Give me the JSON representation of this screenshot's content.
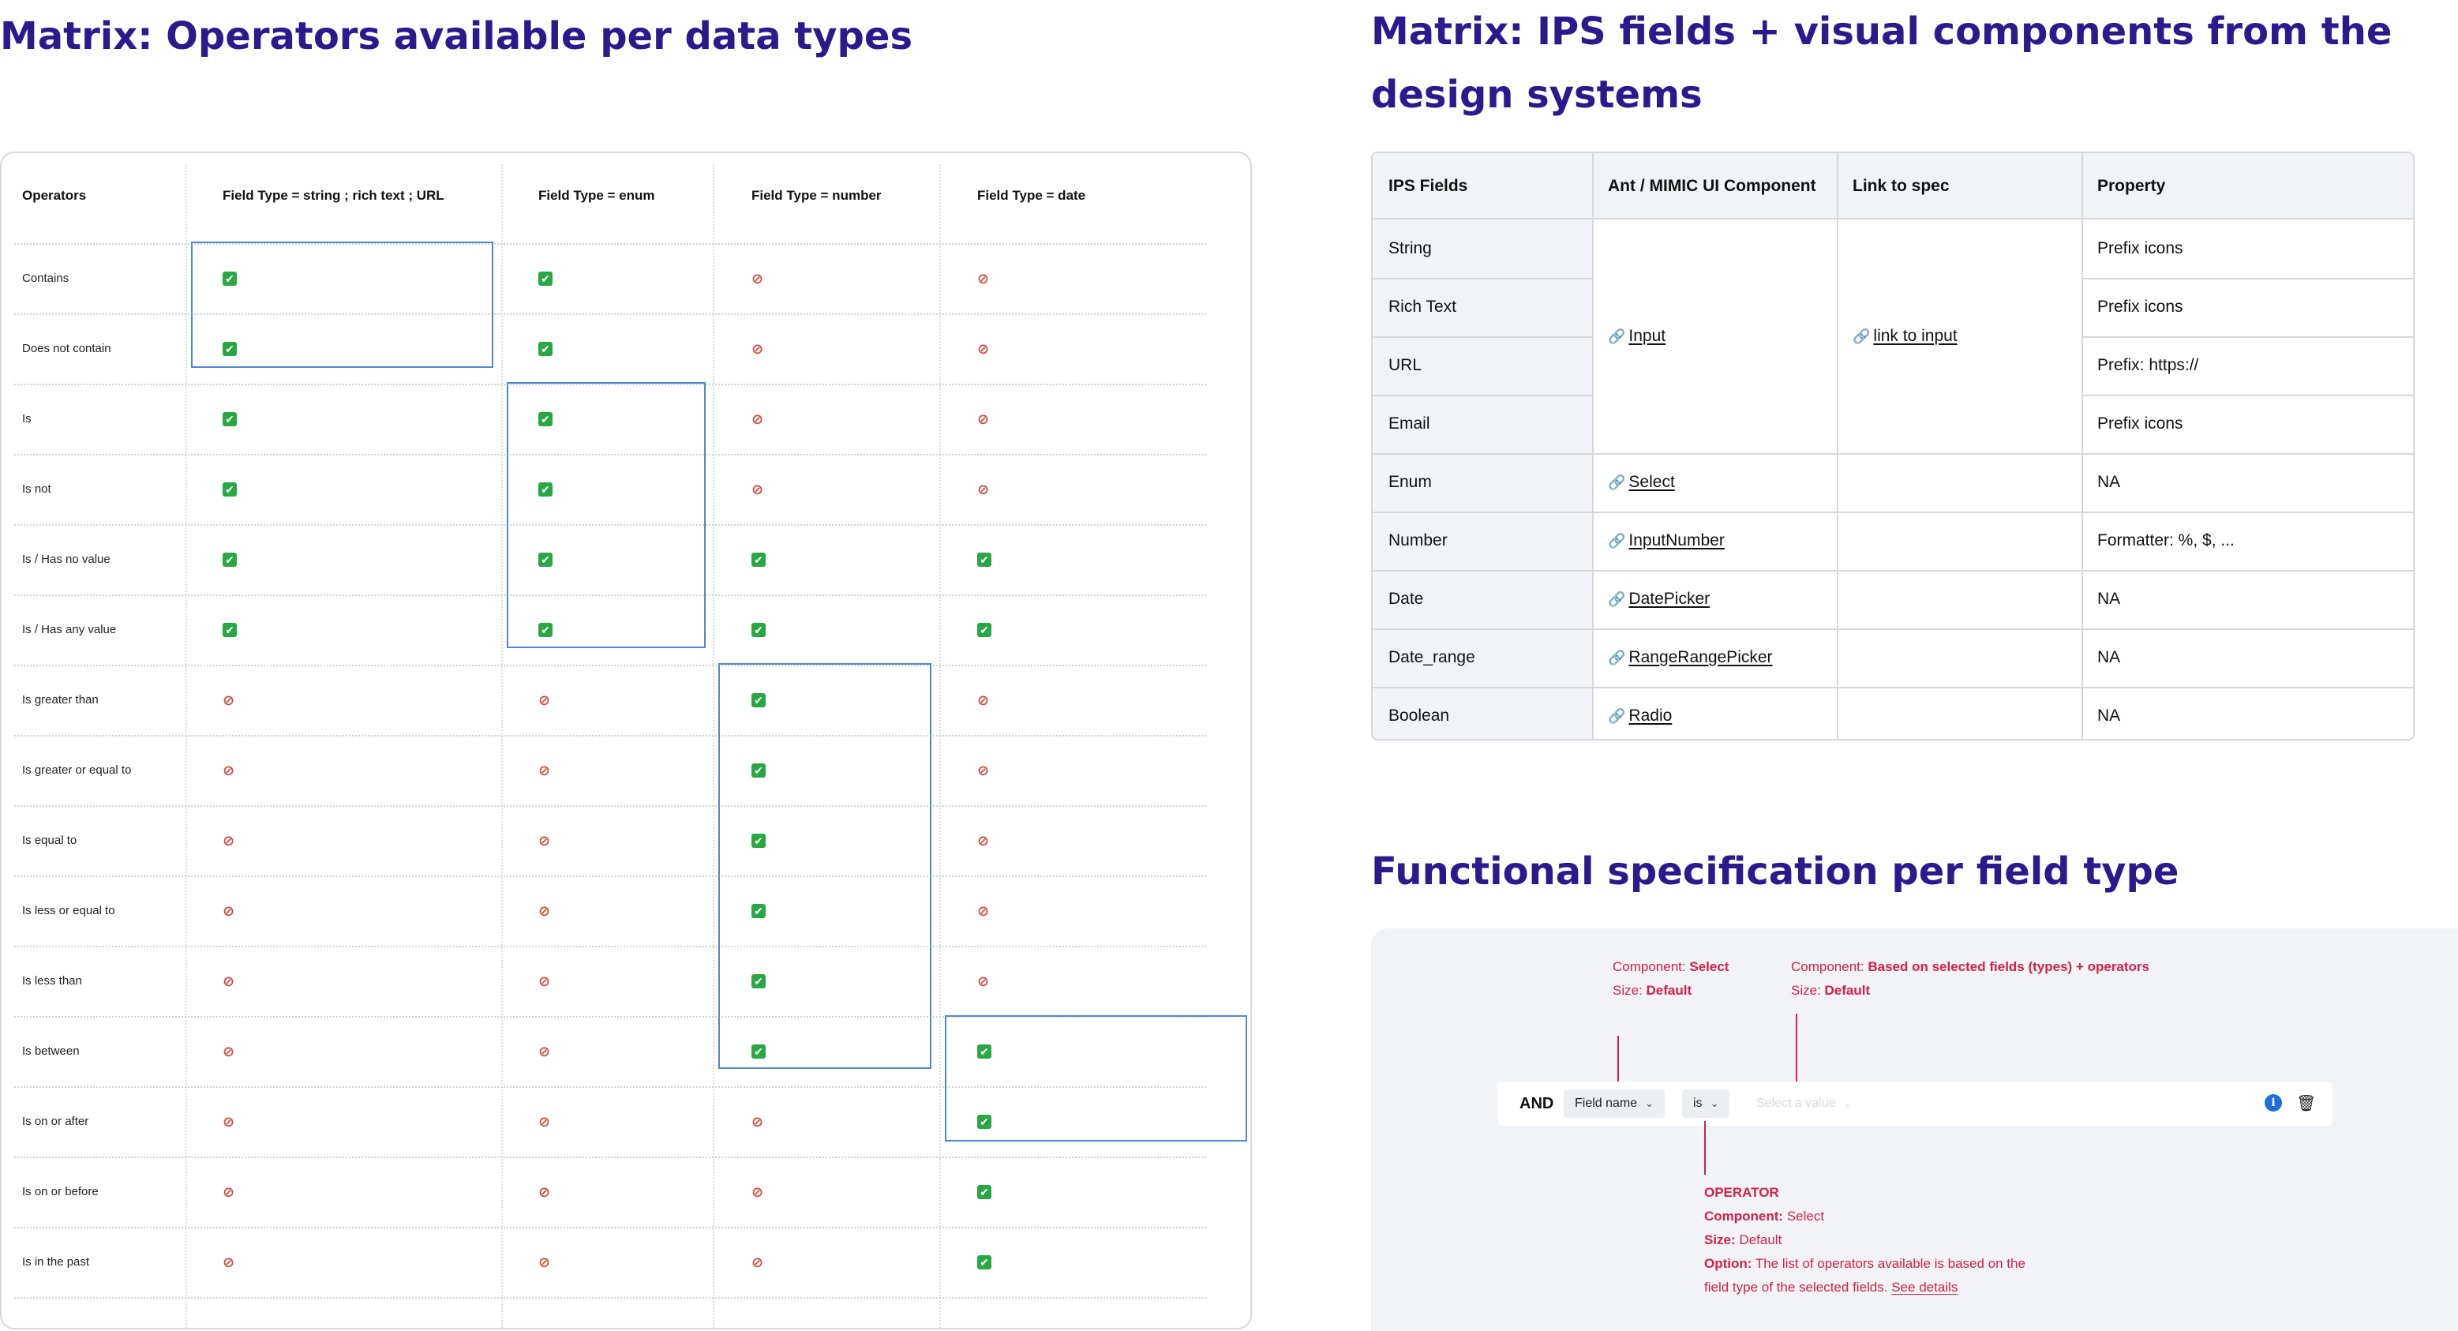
{
  "operators_matrix": {
    "title": "Matrix: Operators available per data types",
    "headers": [
      "Operators",
      "Field Type = string ; rich text ; URL",
      "Field Type = enum",
      "Field Type = number",
      "Field Type = date"
    ],
    "rows": [
      {
        "label": "Contains",
        "values": [
          "yes",
          "yes",
          "no",
          "no"
        ]
      },
      {
        "label": "Does not contain",
        "values": [
          "yes",
          "yes",
          "no",
          "no"
        ]
      },
      {
        "label": "Is",
        "values": [
          "yes",
          "yes",
          "no",
          "no"
        ]
      },
      {
        "label": "Is not",
        "values": [
          "yes",
          "yes",
          "no",
          "no"
        ]
      },
      {
        "label": "Is / Has no value",
        "values": [
          "yes",
          "yes",
          "yes",
          "yes"
        ]
      },
      {
        "label": "Is / Has any value",
        "values": [
          "yes",
          "yes",
          "yes",
          "yes"
        ]
      },
      {
        "label": "Is greater than",
        "values": [
          "no",
          "no",
          "yes",
          "no"
        ]
      },
      {
        "label": "Is greater or equal to",
        "values": [
          "no",
          "no",
          "yes",
          "no"
        ]
      },
      {
        "label": "Is equal to",
        "values": [
          "no",
          "no",
          "yes",
          "no"
        ]
      },
      {
        "label": "Is less or equal to",
        "values": [
          "no",
          "no",
          "yes",
          "no"
        ]
      },
      {
        "label": "Is less than",
        "values": [
          "no",
          "no",
          "yes",
          "no"
        ]
      },
      {
        "label": "Is between",
        "values": [
          "no",
          "no",
          "yes",
          "yes"
        ]
      },
      {
        "label": "Is on or after",
        "values": [
          "no",
          "no",
          "no",
          "yes"
        ]
      },
      {
        "label": "Is on or before",
        "values": [
          "no",
          "no",
          "no",
          "yes"
        ]
      },
      {
        "label": "Is in the past",
        "values": [
          "no",
          "no",
          "no",
          "yes"
        ]
      }
    ],
    "icons": {
      "yes": "check-mark-icon",
      "no": "prohibited-icon"
    },
    "colors": {
      "yes": "#2aa745",
      "no": "#d4473b",
      "highlight": "#4f86d8"
    }
  },
  "ips_matrix": {
    "title_line1": "Matrix: IPS fields + visual components from the",
    "title_line2": "design systems",
    "headers": [
      "IPS Fields",
      "Ant / MIMIC  UI Component",
      "Link to spec",
      "Property"
    ],
    "fields": [
      "String",
      "Rich Text",
      "URL",
      "Email",
      "Enum",
      "Number",
      "Date",
      "Date_range",
      "Boolean"
    ],
    "components": [
      {
        "label": "Input",
        "rows": 4
      },
      {
        "label": "Select",
        "rows": 1
      },
      {
        "label": "InputNumber",
        "rows": 1
      },
      {
        "label": "DatePicker",
        "rows": 1
      },
      {
        "label": "RangeRangePicker",
        "rows": 1
      },
      {
        "label": "Radio",
        "rows": 1
      }
    ],
    "spec_link": "link to input",
    "properties": [
      "Prefix icons",
      "Prefix icons",
      "Prefix: https://",
      "Prefix icons",
      "NA",
      "Formatter: %, $, ...",
      "NA",
      "NA",
      "NA"
    ]
  },
  "functional_spec": {
    "title": "Functional specification per field type",
    "annotations": {
      "field": {
        "component_label": "Component:",
        "component_value": "Select",
        "size_label": "Size:",
        "size_value": "Default"
      },
      "value": {
        "component_label": "Component:",
        "component_value": "Based on selected fields (types) + operators",
        "size_label": "Size:",
        "size_value": "Default"
      },
      "operator": {
        "heading": "OPERATOR",
        "component_label": "Component:",
        "component_value": "Select",
        "size_label": "Size:",
        "size_value": "Default",
        "option_label": "Option:",
        "option_text_1": "The list of operators available is based on the",
        "option_text_2": "field type of the selected fields.",
        "option_link": "See details"
      }
    },
    "query_row": {
      "conjunction": "AND",
      "field_select": "Field name",
      "operator_select": "is",
      "value_placeholder": "Select a value"
    },
    "accent_color": "#d41f4a"
  }
}
